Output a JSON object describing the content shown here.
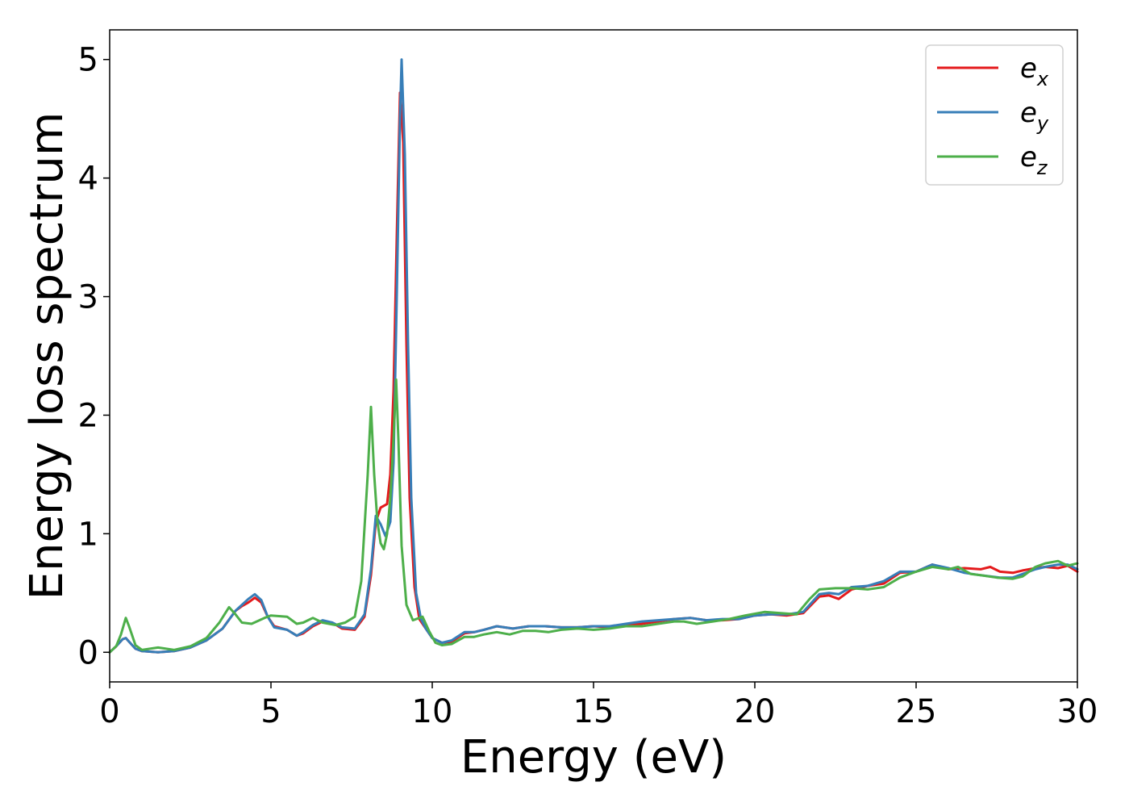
{
  "chart_data": {
    "type": "line",
    "xlabel": "Energy (eV)",
    "ylabel": "Energy loss spectrum",
    "xlim": [
      0,
      30
    ],
    "ylim": [
      -0.25,
      5.25
    ],
    "xticks": [
      0,
      5,
      10,
      15,
      20,
      25,
      30
    ],
    "yticks": [
      0,
      1,
      2,
      3,
      4,
      5
    ],
    "grid": false,
    "legend_position": "top-right",
    "series": [
      {
        "name": "e_x",
        "label_main": "e",
        "label_sub": "x",
        "color": "#e41a1c",
        "points": [
          [
            0,
            0.0
          ],
          [
            0.2,
            0.05
          ],
          [
            0.4,
            0.11
          ],
          [
            0.5,
            0.12
          ],
          [
            0.6,
            0.09
          ],
          [
            0.8,
            0.03
          ],
          [
            1.0,
            0.01
          ],
          [
            1.5,
            0.0
          ],
          [
            2.0,
            0.01
          ],
          [
            2.5,
            0.04
          ],
          [
            3.0,
            0.1
          ],
          [
            3.5,
            0.2
          ],
          [
            3.9,
            0.35
          ],
          [
            4.1,
            0.39
          ],
          [
            4.3,
            0.42
          ],
          [
            4.5,
            0.46
          ],
          [
            4.7,
            0.42
          ],
          [
            4.9,
            0.3
          ],
          [
            5.1,
            0.22
          ],
          [
            5.5,
            0.19
          ],
          [
            5.8,
            0.14
          ],
          [
            6.0,
            0.16
          ],
          [
            6.3,
            0.22
          ],
          [
            6.6,
            0.26
          ],
          [
            6.9,
            0.25
          ],
          [
            7.2,
            0.2
          ],
          [
            7.6,
            0.19
          ],
          [
            7.9,
            0.3
          ],
          [
            8.1,
            0.65
          ],
          [
            8.25,
            1.1
          ],
          [
            8.4,
            1.22
          ],
          [
            8.6,
            1.25
          ],
          [
            8.7,
            1.5
          ],
          [
            8.8,
            2.2
          ],
          [
            8.9,
            3.5
          ],
          [
            9.0,
            4.72
          ],
          [
            9.1,
            4.3
          ],
          [
            9.2,
            2.6
          ],
          [
            9.3,
            1.3
          ],
          [
            9.45,
            0.55
          ],
          [
            9.6,
            0.28
          ],
          [
            9.8,
            0.2
          ],
          [
            10.0,
            0.12
          ],
          [
            10.3,
            0.08
          ],
          [
            10.6,
            0.09
          ],
          [
            11.0,
            0.16
          ],
          [
            11.3,
            0.17
          ],
          [
            11.6,
            0.19
          ],
          [
            12.0,
            0.22
          ],
          [
            12.5,
            0.2
          ],
          [
            13.0,
            0.22
          ],
          [
            13.5,
            0.22
          ],
          [
            14.0,
            0.21
          ],
          [
            14.5,
            0.21
          ],
          [
            15.0,
            0.22
          ],
          [
            15.5,
            0.21
          ],
          [
            16.0,
            0.23
          ],
          [
            16.5,
            0.24
          ],
          [
            17.0,
            0.26
          ],
          [
            17.5,
            0.28
          ],
          [
            18.0,
            0.29
          ],
          [
            18.5,
            0.27
          ],
          [
            19.0,
            0.27
          ],
          [
            19.5,
            0.28
          ],
          [
            20.0,
            0.31
          ],
          [
            20.5,
            0.32
          ],
          [
            21.0,
            0.31
          ],
          [
            21.5,
            0.33
          ],
          [
            22.0,
            0.47
          ],
          [
            22.3,
            0.48
          ],
          [
            22.6,
            0.45
          ],
          [
            23.0,
            0.53
          ],
          [
            23.5,
            0.56
          ],
          [
            24.0,
            0.58
          ],
          [
            24.5,
            0.67
          ],
          [
            25.0,
            0.68
          ],
          [
            25.5,
            0.74
          ],
          [
            26.0,
            0.7
          ],
          [
            26.5,
            0.71
          ],
          [
            27.0,
            0.7
          ],
          [
            27.3,
            0.72
          ],
          [
            27.6,
            0.68
          ],
          [
            28.0,
            0.67
          ],
          [
            28.3,
            0.69
          ],
          [
            28.7,
            0.71
          ],
          [
            29.0,
            0.72
          ],
          [
            29.4,
            0.71
          ],
          [
            29.7,
            0.73
          ],
          [
            30.0,
            0.68
          ]
        ]
      },
      {
        "name": "e_y",
        "label_main": "e",
        "label_sub": "y",
        "color": "#377eb8",
        "points": [
          [
            0,
            0.0
          ],
          [
            0.2,
            0.05
          ],
          [
            0.4,
            0.11
          ],
          [
            0.5,
            0.12
          ],
          [
            0.6,
            0.09
          ],
          [
            0.8,
            0.03
          ],
          [
            1.0,
            0.01
          ],
          [
            1.5,
            0.0
          ],
          [
            2.0,
            0.01
          ],
          [
            2.5,
            0.04
          ],
          [
            3.0,
            0.1
          ],
          [
            3.5,
            0.2
          ],
          [
            3.9,
            0.35
          ],
          [
            4.1,
            0.4
          ],
          [
            4.3,
            0.45
          ],
          [
            4.5,
            0.49
          ],
          [
            4.7,
            0.44
          ],
          [
            4.9,
            0.3
          ],
          [
            5.1,
            0.21
          ],
          [
            5.5,
            0.19
          ],
          [
            5.8,
            0.14
          ],
          [
            6.0,
            0.17
          ],
          [
            6.3,
            0.23
          ],
          [
            6.6,
            0.27
          ],
          [
            6.9,
            0.25
          ],
          [
            7.2,
            0.21
          ],
          [
            7.6,
            0.2
          ],
          [
            7.9,
            0.32
          ],
          [
            8.1,
            0.7
          ],
          [
            8.25,
            1.15
          ],
          [
            8.4,
            1.08
          ],
          [
            8.55,
            0.98
          ],
          [
            8.7,
            1.1
          ],
          [
            8.8,
            1.6
          ],
          [
            8.9,
            3.0
          ],
          [
            9.0,
            4.5
          ],
          [
            9.05,
            5.0
          ],
          [
            9.15,
            4.2
          ],
          [
            9.25,
            2.6
          ],
          [
            9.35,
            1.3
          ],
          [
            9.5,
            0.5
          ],
          [
            9.65,
            0.28
          ],
          [
            9.8,
            0.2
          ],
          [
            10.0,
            0.12
          ],
          [
            10.3,
            0.08
          ],
          [
            10.6,
            0.1
          ],
          [
            11.0,
            0.17
          ],
          [
            11.3,
            0.17
          ],
          [
            11.6,
            0.19
          ],
          [
            12.0,
            0.22
          ],
          [
            12.5,
            0.2
          ],
          [
            13.0,
            0.22
          ],
          [
            13.5,
            0.22
          ],
          [
            14.0,
            0.21
          ],
          [
            14.5,
            0.21
          ],
          [
            15.0,
            0.22
          ],
          [
            15.5,
            0.22
          ],
          [
            16.0,
            0.24
          ],
          [
            16.5,
            0.26
          ],
          [
            17.0,
            0.27
          ],
          [
            17.5,
            0.28
          ],
          [
            18.0,
            0.29
          ],
          [
            18.5,
            0.27
          ],
          [
            19.0,
            0.28
          ],
          [
            19.5,
            0.28
          ],
          [
            20.0,
            0.31
          ],
          [
            20.5,
            0.32
          ],
          [
            21.0,
            0.32
          ],
          [
            21.5,
            0.34
          ],
          [
            22.0,
            0.49
          ],
          [
            22.3,
            0.5
          ],
          [
            22.6,
            0.49
          ],
          [
            23.0,
            0.55
          ],
          [
            23.5,
            0.56
          ],
          [
            24.0,
            0.6
          ],
          [
            24.5,
            0.68
          ],
          [
            25.0,
            0.68
          ],
          [
            25.5,
            0.74
          ],
          [
            26.0,
            0.71
          ],
          [
            26.5,
            0.67
          ],
          [
            27.0,
            0.65
          ],
          [
            27.3,
            0.64
          ],
          [
            27.6,
            0.63
          ],
          [
            28.0,
            0.63
          ],
          [
            28.3,
            0.66
          ],
          [
            28.7,
            0.7
          ],
          [
            29.0,
            0.72
          ],
          [
            29.4,
            0.74
          ],
          [
            29.7,
            0.74
          ],
          [
            30.0,
            0.7
          ]
        ]
      },
      {
        "name": "e_z",
        "label_main": "e",
        "label_sub": "z",
        "color": "#4daf4a",
        "points": [
          [
            0,
            0.0
          ],
          [
            0.2,
            0.05
          ],
          [
            0.35,
            0.15
          ],
          [
            0.5,
            0.29
          ],
          [
            0.6,
            0.22
          ],
          [
            0.8,
            0.06
          ],
          [
            1.0,
            0.02
          ],
          [
            1.5,
            0.04
          ],
          [
            2.0,
            0.02
          ],
          [
            2.5,
            0.05
          ],
          [
            3.0,
            0.12
          ],
          [
            3.4,
            0.25
          ],
          [
            3.7,
            0.38
          ],
          [
            3.9,
            0.32
          ],
          [
            4.1,
            0.25
          ],
          [
            4.4,
            0.24
          ],
          [
            4.8,
            0.29
          ],
          [
            5.0,
            0.31
          ],
          [
            5.5,
            0.3
          ],
          [
            5.8,
            0.24
          ],
          [
            6.0,
            0.25
          ],
          [
            6.3,
            0.29
          ],
          [
            6.6,
            0.25
          ],
          [
            7.0,
            0.23
          ],
          [
            7.3,
            0.25
          ],
          [
            7.6,
            0.3
          ],
          [
            7.8,
            0.6
          ],
          [
            8.0,
            1.5
          ],
          [
            8.1,
            2.07
          ],
          [
            8.2,
            1.5
          ],
          [
            8.3,
            1.1
          ],
          [
            8.4,
            0.92
          ],
          [
            8.5,
            0.87
          ],
          [
            8.6,
            1.0
          ],
          [
            8.7,
            1.3
          ],
          [
            8.8,
            1.8
          ],
          [
            8.88,
            2.3
          ],
          [
            8.95,
            1.8
          ],
          [
            9.05,
            0.9
          ],
          [
            9.2,
            0.4
          ],
          [
            9.4,
            0.27
          ],
          [
            9.7,
            0.3
          ],
          [
            9.9,
            0.18
          ],
          [
            10.1,
            0.08
          ],
          [
            10.3,
            0.06
          ],
          [
            10.6,
            0.07
          ],
          [
            11.0,
            0.13
          ],
          [
            11.3,
            0.13
          ],
          [
            11.6,
            0.15
          ],
          [
            12.0,
            0.17
          ],
          [
            12.4,
            0.15
          ],
          [
            12.8,
            0.18
          ],
          [
            13.2,
            0.18
          ],
          [
            13.6,
            0.17
          ],
          [
            14.0,
            0.19
          ],
          [
            14.5,
            0.2
          ],
          [
            15.0,
            0.19
          ],
          [
            15.5,
            0.2
          ],
          [
            16.0,
            0.22
          ],
          [
            16.5,
            0.22
          ],
          [
            17.0,
            0.24
          ],
          [
            17.5,
            0.26
          ],
          [
            17.8,
            0.26
          ],
          [
            18.2,
            0.24
          ],
          [
            18.7,
            0.26
          ],
          [
            19.2,
            0.28
          ],
          [
            19.7,
            0.31
          ],
          [
            20.3,
            0.34
          ],
          [
            20.8,
            0.33
          ],
          [
            21.3,
            0.32
          ],
          [
            21.7,
            0.45
          ],
          [
            22.0,
            0.53
          ],
          [
            22.5,
            0.54
          ],
          [
            23.0,
            0.54
          ],
          [
            23.5,
            0.53
          ],
          [
            24.0,
            0.55
          ],
          [
            24.5,
            0.63
          ],
          [
            25.0,
            0.68
          ],
          [
            25.5,
            0.72
          ],
          [
            26.0,
            0.7
          ],
          [
            26.3,
            0.72
          ],
          [
            26.7,
            0.66
          ],
          [
            27.0,
            0.65
          ],
          [
            27.5,
            0.63
          ],
          [
            28.0,
            0.62
          ],
          [
            28.3,
            0.64
          ],
          [
            28.7,
            0.72
          ],
          [
            29.0,
            0.75
          ],
          [
            29.4,
            0.77
          ],
          [
            29.7,
            0.73
          ],
          [
            30.0,
            0.75
          ]
        ]
      }
    ]
  }
}
